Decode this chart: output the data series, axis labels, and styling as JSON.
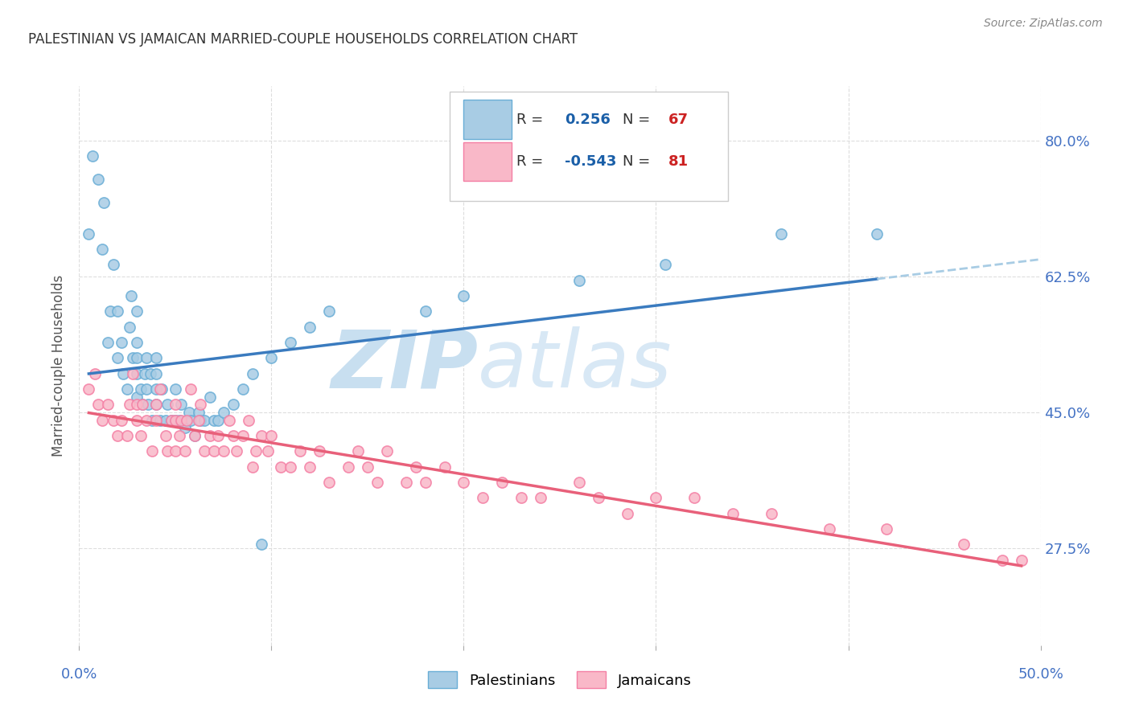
{
  "title": "PALESTINIAN VS JAMAICAN MARRIED-COUPLE HOUSEHOLDS CORRELATION CHART",
  "source": "Source: ZipAtlas.com",
  "ylabel": "Married-couple Households",
  "xlim": [
    0.0,
    0.5
  ],
  "ylim": [
    0.15,
    0.87
  ],
  "yticks": [
    0.275,
    0.45,
    0.625,
    0.8
  ],
  "ytick_labels": [
    "27.5%",
    "45.0%",
    "62.5%",
    "80.0%"
  ],
  "palestinians_R": "0.256",
  "palestinians_N": "67",
  "jamaicans_R": "-0.543",
  "jamaicans_N": "81",
  "blue_scatter_color": "#a8cce4",
  "blue_scatter_edge": "#6aaed6",
  "pink_scatter_color": "#f9b8c8",
  "pink_scatter_edge": "#f47fa4",
  "blue_line_color": "#3a7bbf",
  "pink_line_color": "#e8607a",
  "blue_dashed_color": "#a8cce4",
  "watermark_zip_color": "#c8dff0",
  "watermark_atlas_color": "#d8e8f5",
  "title_color": "#333333",
  "source_color": "#888888",
  "axis_label_color": "#4472C4",
  "legend_R_color": "#1a5fa8",
  "legend_N_color": "#cc2222",
  "background_color": "#ffffff",
  "grid_color": "#dddddd",
  "palestinians_x": [
    0.005,
    0.007,
    0.01,
    0.012,
    0.013,
    0.015,
    0.016,
    0.018,
    0.02,
    0.02,
    0.022,
    0.023,
    0.025,
    0.026,
    0.027,
    0.028,
    0.03,
    0.03,
    0.03,
    0.03,
    0.03,
    0.032,
    0.033,
    0.034,
    0.035,
    0.035,
    0.036,
    0.037,
    0.038,
    0.04,
    0.04,
    0.04,
    0.04,
    0.042,
    0.043,
    0.045,
    0.046,
    0.048,
    0.05,
    0.05,
    0.052,
    0.053,
    0.055,
    0.057,
    0.058,
    0.06,
    0.062,
    0.063,
    0.065,
    0.068,
    0.07,
    0.072,
    0.075,
    0.08,
    0.085,
    0.09,
    0.095,
    0.1,
    0.11,
    0.12,
    0.13,
    0.18,
    0.2,
    0.26,
    0.305,
    0.365,
    0.415
  ],
  "palestinians_y": [
    0.68,
    0.78,
    0.75,
    0.66,
    0.72,
    0.54,
    0.58,
    0.64,
    0.52,
    0.58,
    0.54,
    0.5,
    0.48,
    0.56,
    0.6,
    0.52,
    0.47,
    0.5,
    0.52,
    0.54,
    0.58,
    0.48,
    0.46,
    0.5,
    0.48,
    0.52,
    0.46,
    0.5,
    0.44,
    0.46,
    0.48,
    0.5,
    0.52,
    0.44,
    0.48,
    0.44,
    0.46,
    0.44,
    0.44,
    0.48,
    0.44,
    0.46,
    0.43,
    0.45,
    0.44,
    0.42,
    0.45,
    0.44,
    0.44,
    0.47,
    0.44,
    0.44,
    0.45,
    0.46,
    0.48,
    0.5,
    0.28,
    0.52,
    0.54,
    0.56,
    0.58,
    0.58,
    0.6,
    0.62,
    0.64,
    0.68,
    0.68
  ],
  "jamaicans_x": [
    0.005,
    0.008,
    0.01,
    0.012,
    0.015,
    0.018,
    0.02,
    0.022,
    0.025,
    0.026,
    0.028,
    0.03,
    0.03,
    0.032,
    0.033,
    0.035,
    0.038,
    0.04,
    0.04,
    0.042,
    0.045,
    0.046,
    0.048,
    0.05,
    0.05,
    0.05,
    0.052,
    0.053,
    0.055,
    0.056,
    0.058,
    0.06,
    0.062,
    0.063,
    0.065,
    0.068,
    0.07,
    0.072,
    0.075,
    0.078,
    0.08,
    0.082,
    0.085,
    0.088,
    0.09,
    0.092,
    0.095,
    0.098,
    0.1,
    0.105,
    0.11,
    0.115,
    0.12,
    0.125,
    0.13,
    0.14,
    0.145,
    0.15,
    0.155,
    0.16,
    0.17,
    0.175,
    0.18,
    0.19,
    0.2,
    0.21,
    0.22,
    0.23,
    0.24,
    0.26,
    0.27,
    0.285,
    0.3,
    0.32,
    0.34,
    0.36,
    0.39,
    0.42,
    0.46,
    0.48,
    0.49
  ],
  "jamaicans_y": [
    0.48,
    0.5,
    0.46,
    0.44,
    0.46,
    0.44,
    0.42,
    0.44,
    0.42,
    0.46,
    0.5,
    0.44,
    0.46,
    0.42,
    0.46,
    0.44,
    0.4,
    0.44,
    0.46,
    0.48,
    0.42,
    0.4,
    0.44,
    0.4,
    0.44,
    0.46,
    0.42,
    0.44,
    0.4,
    0.44,
    0.48,
    0.42,
    0.44,
    0.46,
    0.4,
    0.42,
    0.4,
    0.42,
    0.4,
    0.44,
    0.42,
    0.4,
    0.42,
    0.44,
    0.38,
    0.4,
    0.42,
    0.4,
    0.42,
    0.38,
    0.38,
    0.4,
    0.38,
    0.4,
    0.36,
    0.38,
    0.4,
    0.38,
    0.36,
    0.4,
    0.36,
    0.38,
    0.36,
    0.38,
    0.36,
    0.34,
    0.36,
    0.34,
    0.34,
    0.36,
    0.34,
    0.32,
    0.34,
    0.34,
    0.32,
    0.32,
    0.3,
    0.3,
    0.28,
    0.26,
    0.26
  ]
}
